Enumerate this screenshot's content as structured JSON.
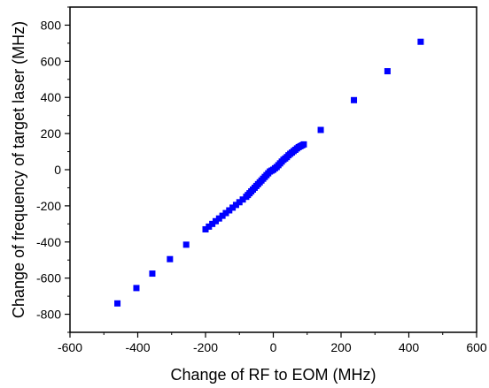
{
  "chart_data": {
    "type": "scatter",
    "title": "",
    "xlabel": "Change of RF to EOM (MHz)",
    "ylabel": "Change of  frequency of target laser (MHz)",
    "xlim": [
      -600,
      600
    ],
    "ylim": [
      -900,
      900
    ],
    "x_ticks": [
      -600,
      -400,
      -200,
      0,
      200,
      400,
      600
    ],
    "y_ticks": [
      -800,
      -600,
      -400,
      -200,
      0,
      200,
      400,
      600,
      800
    ],
    "x_tick_labels": [
      "-600",
      "-400",
      "-200",
      "0",
      "200",
      "400",
      "600"
    ],
    "y_tick_labels": [
      "-800",
      "-600",
      "-400",
      "-200",
      "0",
      "200",
      "400",
      "600",
      "800"
    ],
    "grid": false,
    "marker": "square",
    "color": "#0000ff",
    "x": [
      -460,
      -404,
      -357,
      -305,
      -257,
      -200,
      -190,
      -180,
      -170,
      -160,
      -150,
      -140,
      -130,
      -120,
      -110,
      -100,
      -90,
      -80,
      -75,
      -70,
      -65,
      -60,
      -55,
      -50,
      -45,
      -40,
      -35,
      -30,
      -25,
      -20,
      -15,
      -10,
      -5,
      0,
      5,
      10,
      15,
      20,
      25,
      30,
      35,
      40,
      45,
      50,
      55,
      60,
      65,
      70,
      75,
      80,
      85,
      90,
      140,
      238,
      337,
      435
    ],
    "y": [
      -740,
      -655,
      -575,
      -495,
      -415,
      -330,
      -315,
      -300,
      -285,
      -270,
      -255,
      -240,
      -225,
      -210,
      -195,
      -180,
      -165,
      -150,
      -140,
      -130,
      -120,
      -110,
      -100,
      -90,
      -80,
      -70,
      -60,
      -50,
      -40,
      -30,
      -20,
      -10,
      -5,
      0,
      8,
      15,
      25,
      35,
      45,
      55,
      62,
      70,
      80,
      88,
      95,
      103,
      110,
      118,
      125,
      130,
      135,
      140,
      220,
      385,
      545,
      708
    ]
  }
}
